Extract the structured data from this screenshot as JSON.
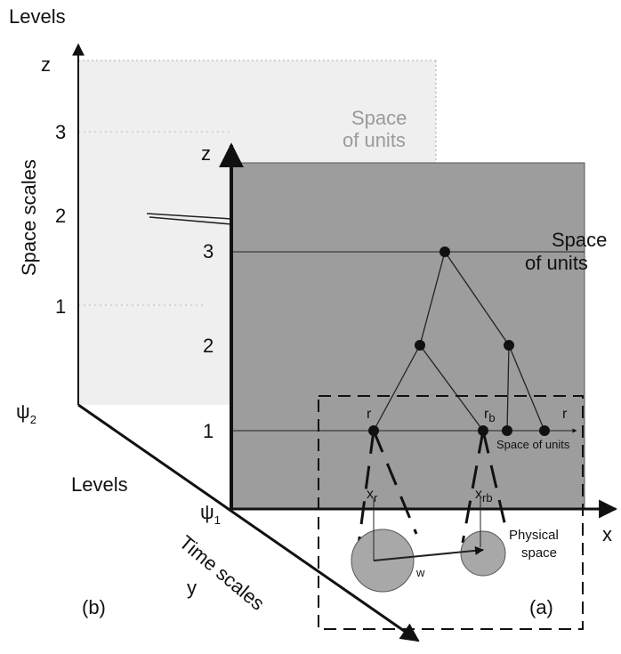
{
  "back": {
    "axis_title": "Levels",
    "axis_z": "z",
    "level_3": "3",
    "level_2": "2",
    "level_1": "1",
    "space_of_units": [
      "Space",
      "of units"
    ],
    "space_scales": "Space scales",
    "psi_2": {
      "text": "ψ",
      "sub": "2"
    },
    "levels": "Levels",
    "psi_1": {
      "text": "ψ",
      "sub": "1"
    },
    "time_scales": "Time scales",
    "axis_y": "y",
    "panel_label": "(b)"
  },
  "front": {
    "axis_z": "z",
    "level_3": "3",
    "level_2": "2",
    "level_1": "1",
    "space_of_units": [
      "Space",
      "of units"
    ],
    "r_left": "r",
    "r_b": {
      "text": "r",
      "sub": "b"
    },
    "r_arrow": "r",
    "space_of_units_small": "Space of units",
    "x_r": {
      "text": "x",
      "sub": "r"
    },
    "x_rb": {
      "text": "x",
      "sub": "rb"
    },
    "w": "w",
    "physical_space": [
      "Physical",
      "space"
    ],
    "axis_x": "x",
    "panel_label": "(a)"
  }
}
